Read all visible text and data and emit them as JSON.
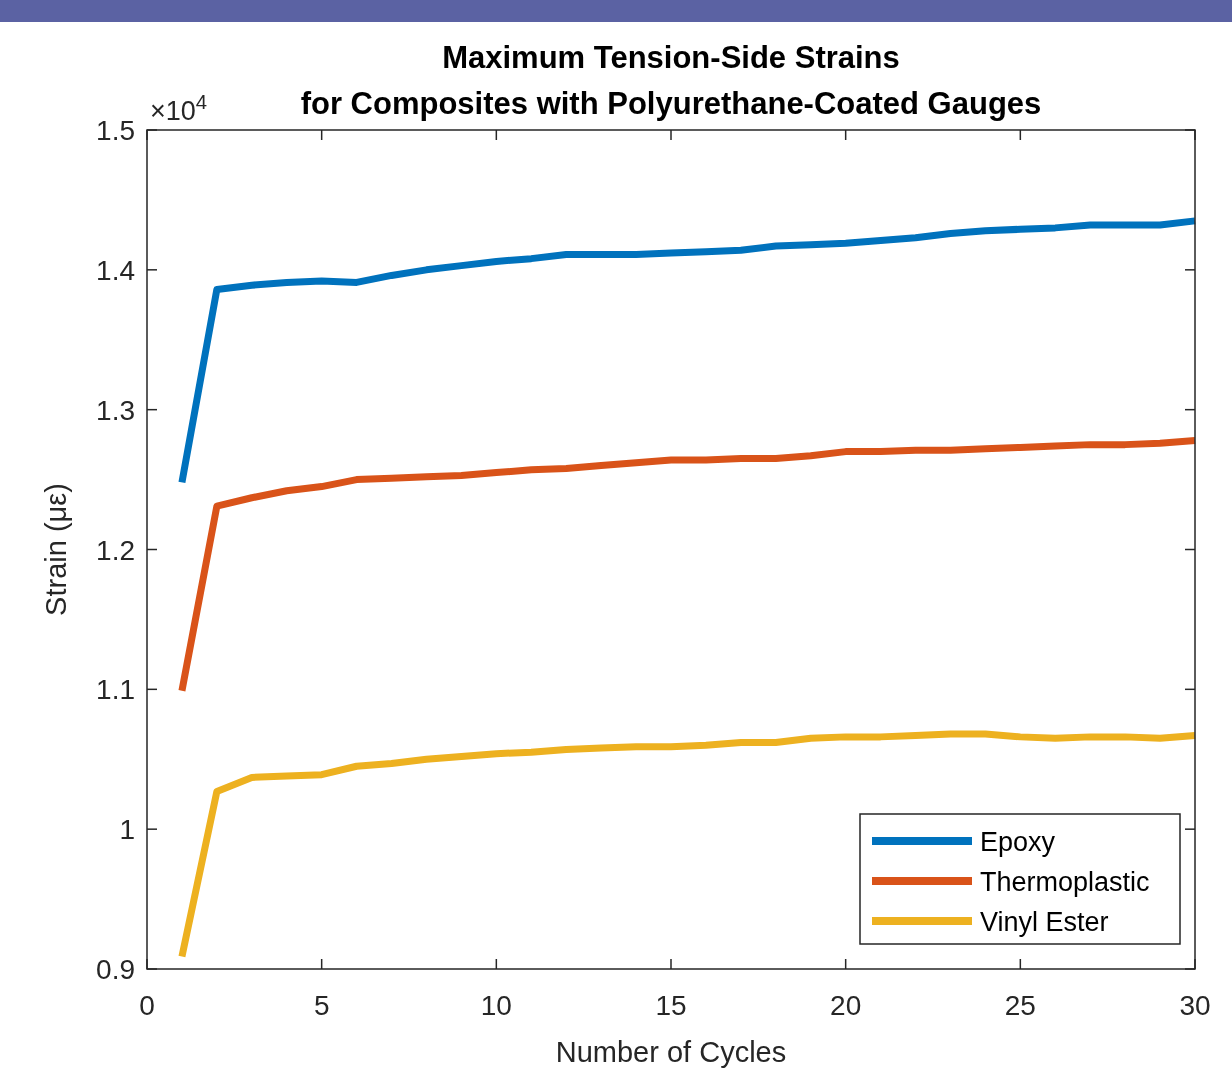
{
  "chart_data": {
    "type": "line",
    "title": "Maximum Tension-Side Strains",
    "subtitle": "for Composites with Polyurethane-Coated Gauges",
    "xlabel": "Number of Cycles",
    "ylabel": "Strain (με)",
    "annotations": [
      "×10$^{4}$"
    ],
    "x": [
      1,
      2,
      3,
      4,
      5,
      6,
      7,
      8,
      9,
      10,
      11,
      12,
      13,
      14,
      15,
      16,
      17,
      18,
      19,
      20,
      21,
      22,
      23,
      24,
      25,
      26,
      27,
      28,
      29,
      30
    ],
    "series": [
      {
        "name": "Epoxy",
        "color": "#0072bd",
        "values": [
          1.248,
          1.386,
          1.389,
          1.391,
          1.392,
          1.391,
          1.396,
          1.4,
          1.403,
          1.406,
          1.408,
          1.411,
          1.411,
          1.411,
          1.412,
          1.413,
          1.414,
          1.417,
          1.418,
          1.419,
          1.421,
          1.423,
          1.426,
          1.428,
          1.429,
          1.43,
          1.432,
          1.432,
          1.432,
          1.435
        ]
      },
      {
        "name": "Thermoplastic",
        "color": "#d95319",
        "values": [
          1.099,
          1.231,
          1.237,
          1.242,
          1.245,
          1.25,
          1.251,
          1.252,
          1.253,
          1.255,
          1.257,
          1.258,
          1.26,
          1.262,
          1.264,
          1.264,
          1.265,
          1.265,
          1.267,
          1.27,
          1.27,
          1.271,
          1.271,
          1.272,
          1.273,
          1.274,
          1.275,
          1.275,
          1.276,
          1.278
        ]
      },
      {
        "name": "Vinyl Ester",
        "color": "#edb120",
        "values": [
          0.909,
          1.027,
          1.037,
          1.038,
          1.039,
          1.045,
          1.047,
          1.05,
          1.052,
          1.054,
          1.055,
          1.057,
          1.058,
          1.059,
          1.059,
          1.06,
          1.062,
          1.062,
          1.065,
          1.066,
          1.066,
          1.067,
          1.068,
          1.068,
          1.066,
          1.065,
          1.066,
          1.066,
          1.065,
          1.067
        ]
      }
    ],
    "xlim": [
      0,
      30
    ],
    "xticks": [
      0,
      5,
      10,
      15,
      20,
      25,
      30
    ],
    "ylim": [
      0.9,
      1.5
    ],
    "yticks": [
      0.9,
      1,
      1.1,
      1.2,
      1.3,
      1.4,
      1.5
    ],
    "grid": false,
    "legend": "bottom right",
    "marker": "none",
    "line_style": "solid"
  }
}
